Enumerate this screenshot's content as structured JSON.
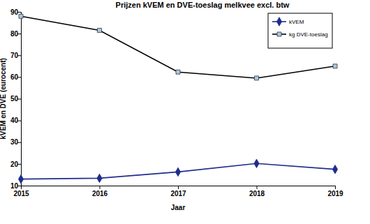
{
  "chart_data": {
    "type": "line",
    "title": "Prijzen kVEM en DVE-toeslag melkvee excl. btw",
    "x_label": "Jaar",
    "y_label": "kVEM en DVE (eurocent)",
    "x": [
      2015,
      2016,
      2017,
      2018,
      2019
    ],
    "series": [
      {
        "name": "kVEM",
        "color": "#1f2c8c",
        "marker": "diamond",
        "values": [
          13,
          13.4,
          16.3,
          20.2,
          17.5
        ]
      },
      {
        "name": "kg DVE-toeslag",
        "color": "#000000",
        "marker": "square",
        "values": [
          88,
          81.5,
          62.3,
          59.5,
          65
        ]
      }
    ],
    "xlim": [
      2015,
      2019
    ],
    "xticks": [
      2015,
      2016,
      2017,
      2018,
      2019
    ],
    "ylim": [
      10,
      90
    ],
    "yticks": [
      10,
      20,
      30,
      40,
      50,
      60,
      70,
      80,
      90
    ],
    "grid": false,
    "legend": "top-right"
  }
}
